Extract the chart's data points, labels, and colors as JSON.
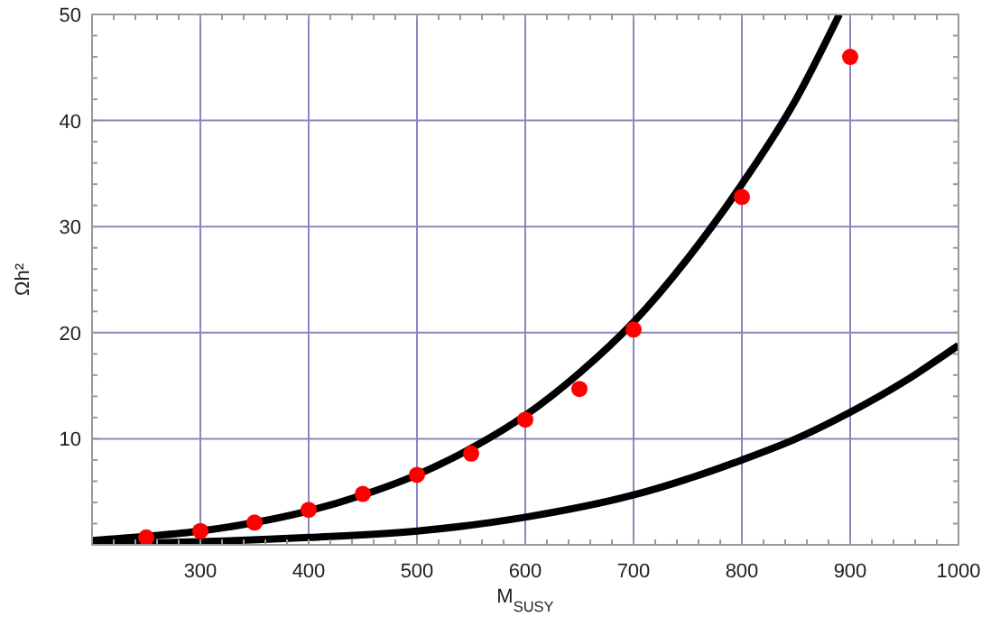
{
  "chart_data": {
    "type": "scatter",
    "xlabel": "M$_{SUSY}$",
    "ylabel": "Ωh²",
    "xlim": [
      200,
      1000
    ],
    "xticks": [
      300,
      400,
      500,
      600,
      700,
      800,
      900,
      1000
    ],
    "ylim": [
      0,
      50
    ],
    "yticks": [
      10,
      20,
      30,
      40,
      50
    ],
    "grid": true,
    "series": [
      {
        "type": "line",
        "color": "#000000",
        "marker": "none",
        "x": [
          200,
          250,
          300,
          350,
          400,
          450,
          500,
          550,
          600,
          650,
          700,
          750,
          800,
          850,
          890
        ],
        "values": [
          0.4,
          0.8,
          1.3,
          2.1,
          3.2,
          4.7,
          6.6,
          9.1,
          12.2,
          16.2,
          21,
          27,
          34,
          42,
          50
        ]
      },
      {
        "type": "line",
        "color": "#000000",
        "marker": "none",
        "x": [
          200,
          300,
          400,
          500,
          600,
          700,
          800,
          850,
          900,
          950,
          1000
        ],
        "values": [
          0.1,
          0.3,
          0.7,
          1.3,
          2.6,
          4.7,
          8,
          10,
          12.5,
          15.4,
          18.8
        ]
      },
      {
        "color": "#ff0000",
        "marker": "circle",
        "x": [
          250,
          300,
          350,
          400,
          450,
          500,
          550,
          600,
          650,
          700,
          800,
          900
        ],
        "values": [
          0.7,
          1.3,
          2.1,
          3.3,
          4.8,
          6.6,
          8.6,
          11.8,
          14.7,
          20.3,
          32.8,
          46
        ]
      }
    ]
  }
}
